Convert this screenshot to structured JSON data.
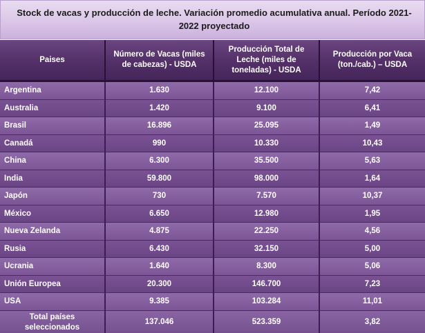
{
  "title": "Stock de vacas y producción de leche. Variación promedio acumulativa anual. Período 2021-2022 proyectado",
  "headers": [
    "Paises",
    "Número de Vacas (miles de cabezas) - USDA",
    "Producción Total de Leche (miles de toneladas) - USDA",
    "Producción por Vaca (ton./cab.) – USDA"
  ],
  "rows": [
    {
      "pais": "Argentina",
      "vacas": "1.630",
      "produccion": "12.100",
      "por_vaca": "7,42"
    },
    {
      "pais": "Australia",
      "vacas": "1.420",
      "produccion": "9.100",
      "por_vaca": "6,41"
    },
    {
      "pais": "Brasil",
      "vacas": "16.896",
      "produccion": "25.095",
      "por_vaca": "1,49"
    },
    {
      "pais": "Canadá",
      "vacas": "990",
      "produccion": "10.330",
      "por_vaca": "10,43"
    },
    {
      "pais": "China",
      "vacas": "6.300",
      "produccion": "35.500",
      "por_vaca": "5,63"
    },
    {
      "pais": "India",
      "vacas": "59.800",
      "produccion": "98.000",
      "por_vaca": "1,64"
    },
    {
      "pais": "Japón",
      "vacas": "730",
      "produccion": "7.570",
      "por_vaca": "10,37"
    },
    {
      "pais": "México",
      "vacas": "6.650",
      "produccion": "12.980",
      "por_vaca": "1,95"
    },
    {
      "pais": "Nueva Zelanda",
      "vacas": "4.875",
      "produccion": "22.250",
      "por_vaca": "4,56"
    },
    {
      "pais": "Rusia",
      "vacas": "6.430",
      "produccion": "32.150",
      "por_vaca": "5,00"
    },
    {
      "pais": "Ucrania",
      "vacas": "1.640",
      "produccion": "8.300",
      "por_vaca": "5,06"
    },
    {
      "pais": "Unión Europea",
      "vacas": "20.300",
      "produccion": "146.700",
      "por_vaca": "7,23"
    },
    {
      "pais": "USA",
      "vacas": "9.385",
      "produccion": "103.284",
      "por_vaca": "11,01"
    }
  ],
  "total": {
    "pais": "Total países seleccionados",
    "vacas": "137.046",
    "produccion": "523.359",
    "por_vaca": "3,82"
  },
  "colors": {
    "header_bg": "#553169",
    "row_light": "#8f6aa8",
    "row_dark": "#7a5294",
    "title_bg": "#dbc6e8"
  }
}
